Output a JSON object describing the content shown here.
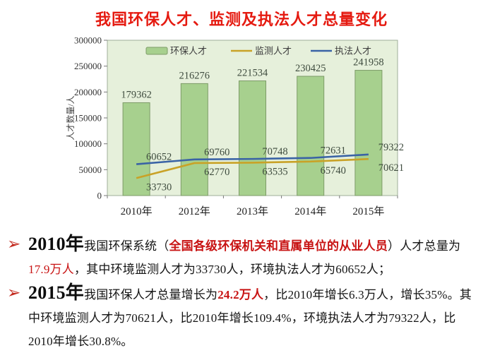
{
  "title": "我国环保人才、监测及执法人才总量变化",
  "colors": {
    "title_red": "#e51a10",
    "emphasis_red": "#c81414",
    "marker_red": "#c32a1e",
    "bar_fill": "#a7d08e",
    "bar_border": "#7d9b68",
    "monitor_line": "#c9a227",
    "enforce_line": "#3a63a5",
    "plot_bg": "#e6f0db",
    "plot_frame": "#9fae9a",
    "data_label": "#3e4b3e"
  },
  "chart_data": {
    "type": "bar",
    "subtype": "bar+line combo",
    "title": "我国环保人才、监测及执法人才总量变化",
    "categories": [
      "2010年",
      "2012年",
      "2013年",
      "2014年",
      "2015年"
    ],
    "series": [
      {
        "name": "环保人才",
        "type": "bar",
        "values": [
          179362,
          216276,
          221534,
          230425,
          241958
        ],
        "label_side": "above"
      },
      {
        "name": "监测人才",
        "type": "line",
        "values": [
          33730,
          62770,
          63535,
          65740,
          70621
        ],
        "label_side": "below"
      },
      {
        "name": "执法人才",
        "type": "line",
        "values": [
          60652,
          69760,
          70748,
          72631,
          79322
        ],
        "label_side": "above"
      }
    ],
    "xlabel": "",
    "ylabel": "人才数量/人",
    "ylim": [
      0,
      300000
    ],
    "ytick_step": 50000,
    "yticks": [
      "0",
      "50000",
      "100000",
      "150000",
      "200000",
      "250000",
      "300000"
    ],
    "legend_position": "top-inside",
    "grid": false
  },
  "bullets": [
    {
      "marker": "➢",
      "segments": [
        {
          "t": "2010年",
          "s": "year"
        },
        {
          "t": "我国环保系统（",
          "s": "plain"
        },
        {
          "t": "全国各级环保机关和直属单位的从业人员",
          "s": "redbold"
        },
        {
          "t": "）人才总量为",
          "s": "plain"
        },
        {
          "t": "17.9万人",
          "s": "red"
        },
        {
          "t": "，其中环境监测人才为33730人，环境执法人才为60652人；",
          "s": "plain"
        }
      ]
    },
    {
      "marker": "➢",
      "segments": [
        {
          "t": "2015年",
          "s": "year"
        },
        {
          "t": "我国环保人才总量增长为",
          "s": "plain"
        },
        {
          "t": "24.2万人",
          "s": "redbold"
        },
        {
          "t": "，比2010年增长6.3万人，增长35%。其中环境监测人才为70621人，比2010年增长109.4%，环境执法人才为79322人，比2010年增长30.8%。",
          "s": "plain"
        }
      ]
    }
  ]
}
